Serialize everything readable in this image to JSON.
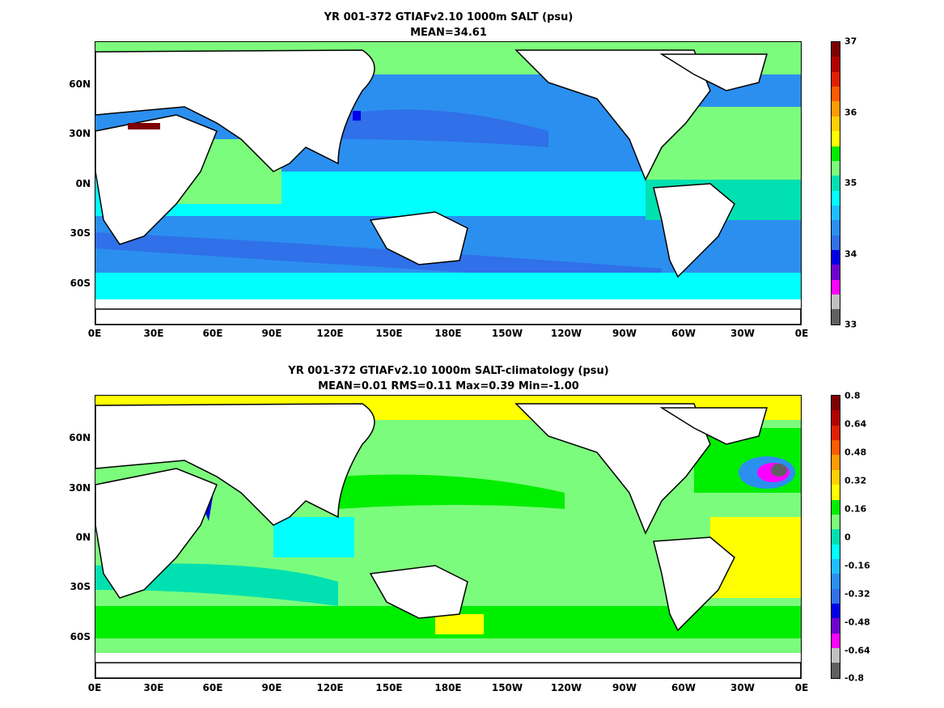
{
  "panels": [
    {
      "title_line1": "YR 001-372 GTIAFv2.10 1000m SALT (psu)",
      "title_line2": "MEAN=34.61",
      "lat_labels": [
        "60N",
        "30N",
        "0N",
        "30S",
        "60S"
      ],
      "lon_labels": [
        "0E",
        "30E",
        "60E",
        "90E",
        "120E",
        "150E",
        "180E",
        "150W",
        "120W",
        "90W",
        "60W",
        "30W",
        "0E"
      ],
      "colorbar_labels": [
        "37",
        "36",
        "35",
        "34",
        "33"
      ],
      "colorbar_colors": [
        "#7f0000",
        "#b30000",
        "#e02000",
        "#ff5a00",
        "#ff9b00",
        "#ffd000",
        "#ffff00",
        "#00ee00",
        "#7cfc7c",
        "#00e0b0",
        "#00ffff",
        "#1cbfff",
        "#2b8ff0",
        "#3070e8",
        "#0000e8",
        "#7000d0",
        "#ff00ff",
        "#c0c0c0",
        "#606060"
      ]
    },
    {
      "title_line1": "YR 001-372 GTIAFv2.10 1000m SALT-climatology (psu)",
      "title_line2": "MEAN=0.01   RMS=0.11   Max=0.39   Min=-1.00",
      "lat_labels": [
        "60N",
        "30N",
        "0N",
        "30S",
        "60S"
      ],
      "lon_labels": [
        "0E",
        "30E",
        "60E",
        "90E",
        "120E",
        "150E",
        "180E",
        "150W",
        "120W",
        "90W",
        "60W",
        "30W",
        "0E"
      ],
      "colorbar_labels": [
        "0.8",
        "0.64",
        "0.48",
        "0.32",
        "0.16",
        "0",
        "-0.16",
        "-0.32",
        "-0.48",
        "-0.64",
        "-0.8"
      ],
      "colorbar_colors": [
        "#7f0000",
        "#b30000",
        "#e02000",
        "#ff5a00",
        "#ff9b00",
        "#ffd000",
        "#ffff00",
        "#00ee00",
        "#7cfc7c",
        "#00e0b0",
        "#00ffff",
        "#1cbfff",
        "#2b8ff0",
        "#3070e8",
        "#0000e8",
        "#7000d0",
        "#ff00ff",
        "#c0c0c0",
        "#606060"
      ]
    }
  ]
}
